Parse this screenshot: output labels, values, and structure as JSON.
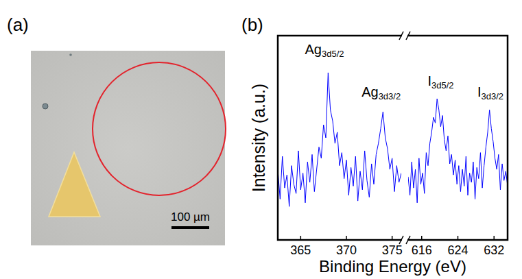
{
  "micrograph": {
    "panel_label": "(a)",
    "scale_bar_label": "100 µm"
  },
  "chart_data": {
    "type": "line",
    "panel_label": "(b)",
    "xlabel": "Binding Energy (eV)",
    "ylabel": "Intensity (a.u.)",
    "color": "#0000ff",
    "ylim": [
      0,
      110
    ],
    "tick_labels": "x",
    "grid": false,
    "segments": [
      {
        "xlim": [
          362.5,
          376
        ],
        "xticks": [
          365,
          370,
          375
        ],
        "x": [
          362.5,
          362.75,
          363,
          363.25,
          363.5,
          363.75,
          364,
          364.25,
          364.5,
          364.75,
          365,
          365.25,
          365.5,
          365.75,
          366,
          366.25,
          366.5,
          366.75,
          367,
          367.25,
          367.5,
          367.75,
          368,
          368.25,
          368.5,
          368.75,
          369,
          369.25,
          369.5,
          369.75,
          370,
          370.25,
          370.5,
          370.75,
          371,
          371.25,
          371.5,
          371.75,
          372,
          372.25,
          372.5,
          372.75,
          373,
          373.25,
          373.5,
          373.75,
          374,
          374.25,
          374.5,
          374.75,
          375,
          375.25,
          375.5,
          375.75,
          376
        ],
        "values": [
          38,
          22,
          45,
          28,
          35,
          18,
          40,
          30,
          25,
          48,
          27,
          36,
          20,
          42,
          31,
          46,
          26,
          38,
          50,
          44,
          62,
          55,
          90,
          70,
          64,
          52,
          58,
          40,
          47,
          33,
          43,
          24,
          39,
          29,
          45,
          21,
          37,
          27,
          48,
          32,
          23,
          41,
          30,
          46,
          52,
          60,
          69,
          55,
          49,
          38,
          44,
          26,
          40,
          31,
          36
        ]
      },
      {
        "xlim": [
          613,
          635
        ],
        "xticks": [
          616,
          624,
          632
        ],
        "x": [
          613,
          613.4,
          613.8,
          614.2,
          614.6,
          615,
          615.4,
          615.8,
          616.2,
          616.6,
          617,
          617.4,
          617.8,
          618.2,
          618.6,
          619,
          619.4,
          619.8,
          620.2,
          620.6,
          621,
          621.4,
          621.8,
          622.2,
          622.6,
          623,
          623.4,
          623.8,
          624.2,
          624.6,
          625,
          625.4,
          625.8,
          626.2,
          626.6,
          627,
          627.4,
          627.8,
          628.2,
          628.6,
          629,
          629.4,
          629.8,
          630.2,
          630.6,
          631,
          631.4,
          631.8,
          632.2,
          632.6,
          633,
          633.4,
          633.8,
          634.2,
          634.6,
          635
        ],
        "values": [
          34,
          24,
          42,
          28,
          38,
          20,
          44,
          30,
          36,
          25,
          47,
          40,
          52,
          58,
          66,
          63,
          76,
          70,
          61,
          67,
          54,
          48,
          56,
          41,
          46,
          35,
          43,
          30,
          40,
          26,
          38,
          29,
          45,
          24,
          36,
          31,
          42,
          22,
          39,
          33,
          47,
          28,
          40,
          50,
          58,
          70,
          60,
          53,
          44,
          38,
          46,
          27,
          41,
          32,
          37,
          29
        ]
      }
    ],
    "annotations": [
      {
        "label": "Ag",
        "subscript": "3d5/2",
        "x": 367.6,
        "y": 100
      },
      {
        "label": "Ag",
        "subscript": "3d3/2",
        "x": 373.8,
        "y": 77
      },
      {
        "label": "I",
        "subscript": "3d5/2",
        "x": 620.2,
        "y": 83
      },
      {
        "label": "I",
        "subscript": "3d3/2",
        "x": 631.2,
        "y": 77
      }
    ]
  }
}
